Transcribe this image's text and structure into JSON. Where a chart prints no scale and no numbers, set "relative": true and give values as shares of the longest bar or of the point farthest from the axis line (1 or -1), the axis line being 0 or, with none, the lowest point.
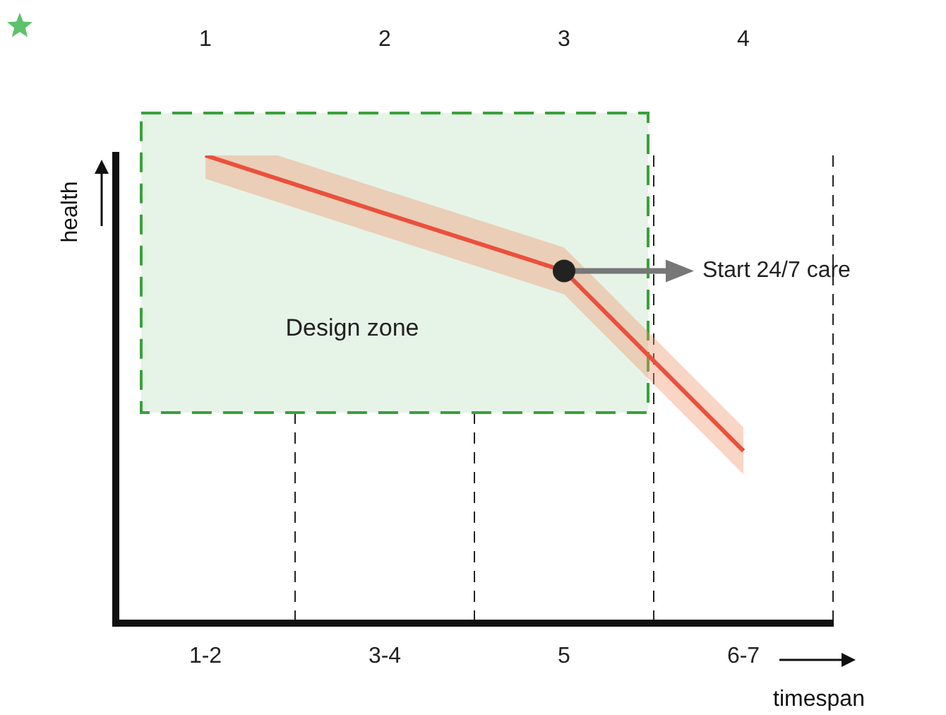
{
  "chart_data": {
    "type": "line",
    "relative": true,
    "xlabel": "timespan",
    "ylabel": "health",
    "categories": [
      "1-2",
      "3-4",
      "5",
      "6-7"
    ],
    "series": [
      {
        "color": "#e8221b",
        "values": [
          1,
          0.876,
          0.753,
          0.368
        ],
        "lower": [
          0.95,
          0.826,
          0.703,
          0.318
        ],
        "upper": [
          1.05,
          0.926,
          0.803,
          0.418
        ]
      }
    ],
    "bands": [
      {
        "axis": "x",
        "from": "1-2",
        "to": "5",
        "label": "Design zone",
        "color": "#e6f4e8"
      }
    ],
    "annotations": [
      "1",
      "2",
      "3",
      "4",
      "Start 24/7 care"
    ],
    "grid": "x",
    "legend": false,
    "marker": "none",
    "line_style": "solid"
  }
}
